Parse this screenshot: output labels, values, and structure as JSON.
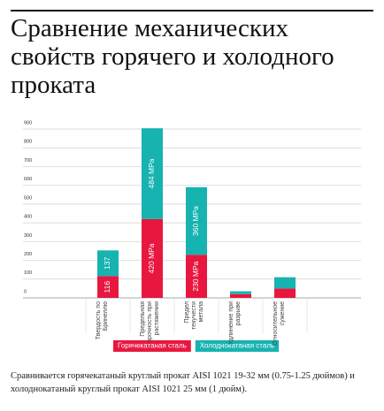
{
  "chart_data": {
    "type": "stacked-bar",
    "title": "Сравнение механических свойств горячего и холодного проката",
    "categories": [
      "Твердость по Бринеллю",
      "Предельная прочность при растяжении",
      "Предел текучести метала",
      "Удлинение при разрыве",
      "Относительное сужение"
    ],
    "series": [
      {
        "name": "Горячекатаная сталь",
        "color": "#e8173f",
        "values": [
          116,
          420,
          230,
          20,
          50
        ],
        "value_labels": [
          "116",
          "420 MPa",
          "230 MPa",
          null,
          null
        ]
      },
      {
        "name": "Холоднокатаная сталь",
        "color": "#16b3b0",
        "values": [
          137,
          484,
          360,
          15,
          60
        ],
        "value_labels": [
          "137",
          "484 MPa",
          "360 MPa",
          null,
          null
        ]
      }
    ],
    "ylim": [
      0,
      900
    ],
    "yticks": [
      0,
      100,
      200,
      300,
      400,
      500,
      600,
      700,
      800,
      900
    ],
    "grid": true,
    "note": "Сравнивается горячекатаный круглый прокат AISI 1021 19-32 мм (0.75-1.25 дюймов) и холоднокатаный круглый прокат AISI 1021 25 мм (1 дюйм)."
  }
}
